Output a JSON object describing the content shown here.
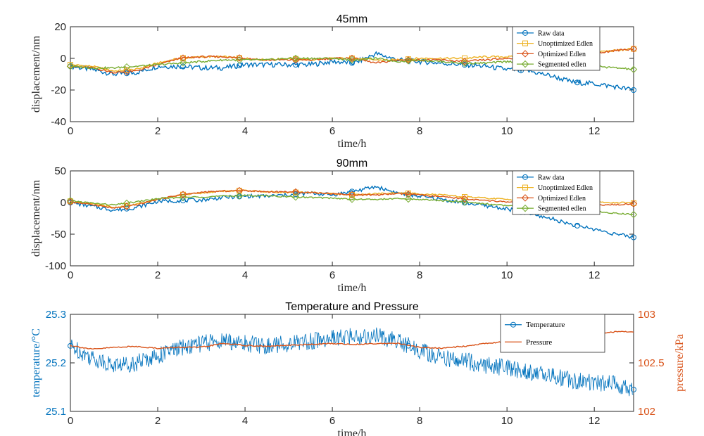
{
  "chart_data": [
    {
      "type": "line",
      "title": "45mm",
      "xlabel": "time/h",
      "ylabel": "displacement/nm",
      "xlim": [
        0,
        12.9
      ],
      "ylim": [
        -40,
        20
      ],
      "xticks": [
        "0",
        "2",
        "4",
        "6",
        "8",
        "10",
        "12"
      ],
      "yticks": [
        "20",
        "0",
        "-20",
        "-40"
      ],
      "legend_position": "top-right",
      "x": [
        0,
        0.5,
        1,
        1.5,
        2,
        2.5,
        3,
        3.5,
        4,
        4.5,
        5,
        5.5,
        6,
        6.5,
        7,
        7.5,
        8,
        8.5,
        9,
        9.5,
        10,
        10.5,
        11,
        11.5,
        12,
        12.5,
        12.9
      ],
      "series": [
        {
          "name": "Raw data",
          "color": "#0072BD",
          "marker": "circle",
          "values": [
            -5,
            -7,
            -10,
            -9,
            -5,
            -5,
            -6,
            -6,
            -4,
            -4,
            -4,
            -4,
            -2,
            -3,
            3,
            -1,
            -2,
            -3,
            -4,
            -5,
            -7,
            -8,
            -11,
            -15,
            -16,
            -18,
            -20
          ]
        },
        {
          "name": "Unoptimized Edlen",
          "color": "#EDB120",
          "marker": "square",
          "values": [
            -4,
            -5,
            -8,
            -7,
            -3,
            0,
            1,
            1,
            0,
            -1,
            0,
            -1,
            0,
            0,
            -1,
            -1,
            0,
            0,
            0,
            1,
            1,
            1,
            2,
            3,
            4,
            5,
            6
          ]
        },
        {
          "name": "Optimized Edlen",
          "color": "#D95319",
          "marker": "diamond",
          "values": [
            -5,
            -6,
            -9,
            -8,
            -4,
            0,
            1,
            1,
            0,
            -1,
            -1,
            -1,
            0,
            0,
            -3,
            -1,
            -1,
            -1,
            -2,
            -1,
            0,
            1,
            1,
            2,
            3,
            5,
            6
          ]
        },
        {
          "name": "Segmented edlen",
          "color": "#77AC30",
          "marker": "diamond",
          "values": [
            -5,
            -6,
            -6,
            -5,
            -4,
            -3,
            -2,
            -1,
            -1,
            -1,
            0,
            0,
            0,
            -1,
            0,
            -2,
            -1,
            -2,
            -3,
            -3,
            -2,
            -2,
            -3,
            -4,
            -5,
            -6,
            -7
          ]
        }
      ]
    },
    {
      "type": "line",
      "title": "90mm",
      "xlabel": "time/h",
      "ylabel": "displacement/nm",
      "xlim": [
        0,
        12.9
      ],
      "ylim": [
        -100,
        50
      ],
      "xticks": [
        "0",
        "2",
        "4",
        "6",
        "8",
        "10",
        "12"
      ],
      "yticks": [
        "50",
        "0",
        "-50",
        "-100"
      ],
      "legend_position": "top-right",
      "x": [
        0,
        0.5,
        1,
        1.5,
        2,
        2.5,
        3,
        3.5,
        4,
        4.5,
        5,
        5.5,
        6,
        6.5,
        7,
        7.5,
        8,
        8.5,
        9,
        9.5,
        10,
        10.5,
        11,
        11.5,
        12,
        12.5,
        12.9
      ],
      "series": [
        {
          "name": "Raw data",
          "color": "#0072BD",
          "marker": "circle",
          "values": [
            0,
            -6,
            -12,
            -8,
            2,
            3,
            4,
            8,
            10,
            10,
            12,
            15,
            12,
            18,
            25,
            15,
            10,
            5,
            0,
            -5,
            -10,
            -18,
            -25,
            -35,
            -42,
            -50,
            -55
          ]
        },
        {
          "name": "Unoptimized Edlen",
          "color": "#EDB120",
          "marker": "square",
          "values": [
            2,
            -2,
            -8,
            -3,
            5,
            12,
            15,
            18,
            19,
            17,
            16,
            16,
            14,
            12,
            14,
            15,
            14,
            12,
            9,
            7,
            5,
            3,
            2,
            1,
            0,
            0,
            -1
          ]
        },
        {
          "name": "Optimized Edlen",
          "color": "#D95319",
          "marker": "diamond",
          "values": [
            1,
            -3,
            -9,
            -4,
            5,
            12,
            16,
            18,
            19,
            17,
            17,
            16,
            14,
            12,
            12,
            14,
            12,
            9,
            6,
            3,
            1,
            0,
            -2,
            -4,
            -5,
            -3,
            -2
          ]
        },
        {
          "name": "Segmented edlen",
          "color": "#77AC30",
          "marker": "diamond",
          "values": [
            3,
            -1,
            -4,
            1,
            6,
            8,
            9,
            10,
            11,
            11,
            9,
            8,
            7,
            5,
            5,
            6,
            5,
            3,
            1,
            -2,
            -5,
            -8,
            -10,
            -12,
            -14,
            -17,
            -19
          ]
        }
      ]
    },
    {
      "type": "line",
      "title": "Temperature and Pressure",
      "xlabel": "time/h",
      "ylabel": "temperature/°C",
      "ylabel_right": "pressure/kPa",
      "xlim": [
        0,
        12.9
      ],
      "ylim": [
        25.1,
        25.3
      ],
      "ylim_right": [
        102,
        103
      ],
      "xticks": [
        "0",
        "2",
        "4",
        "6",
        "8",
        "10",
        "12"
      ],
      "yticks": [
        "25.3",
        "25.2",
        "25.1"
      ],
      "yticks_right": [
        "103",
        "102.5",
        "102"
      ],
      "legend_position": "top-right",
      "x": [
        0,
        0.5,
        1,
        1.5,
        2,
        2.5,
        3,
        3.5,
        4,
        4.5,
        5,
        5.5,
        6,
        6.5,
        7,
        7.5,
        8,
        8.5,
        9,
        9.5,
        10,
        10.5,
        11,
        11.5,
        12,
        12.5,
        12.9
      ],
      "series": [
        {
          "name": "Temperature",
          "color": "#0072BD",
          "marker": "circle",
          "axis": "left",
          "values": [
            25.235,
            25.21,
            25.195,
            25.2,
            25.215,
            25.23,
            25.24,
            25.245,
            25.24,
            25.235,
            25.24,
            25.245,
            25.25,
            25.255,
            25.255,
            25.245,
            25.225,
            25.21,
            25.205,
            25.195,
            25.19,
            25.18,
            25.175,
            25.165,
            25.16,
            25.155,
            25.145
          ]
        },
        {
          "name": "Pressure",
          "color": "#D95319",
          "axis": "right",
          "values": [
            102.68,
            102.64,
            102.66,
            102.67,
            102.65,
            102.66,
            102.66,
            102.7,
            102.68,
            102.67,
            102.68,
            102.69,
            102.7,
            102.69,
            102.7,
            102.7,
            102.66,
            102.65,
            102.67,
            102.7,
            102.72,
            102.74,
            102.77,
            102.78,
            102.8,
            102.82,
            102.82
          ]
        }
      ]
    }
  ]
}
